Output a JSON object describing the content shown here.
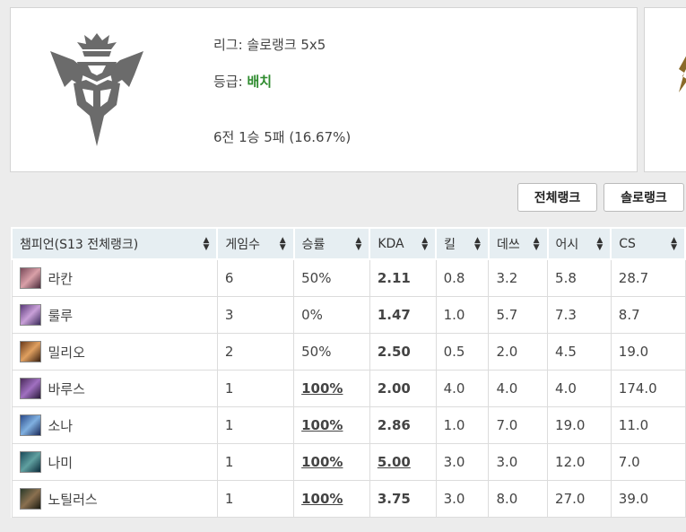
{
  "rank_card": {
    "league_label": "리그: 솔로랭크 5x5",
    "tier_label": "등급: ",
    "tier_value": "배치",
    "record": "6전 1승 5패 (16.67%)"
  },
  "buttons": {
    "total_rank": "전체랭크",
    "solo_rank": "솔로랭크"
  },
  "table": {
    "headers": [
      "챔피언(S13 전체랭크)",
      "게임수",
      "승률",
      "KDA",
      "킬",
      "데쓰",
      "어시",
      "CS"
    ],
    "rows": [
      {
        "champion": "라칸",
        "games": "6",
        "winrate": "50%",
        "kda": "2.11",
        "kills": "0.8",
        "deaths": "3.2",
        "assists": "5.8",
        "cs": "28.7"
      },
      {
        "champion": "룰루",
        "games": "3",
        "winrate": "0%",
        "kda": "1.47",
        "kills": "1.0",
        "deaths": "5.7",
        "assists": "7.3",
        "cs": "8.7"
      },
      {
        "champion": "밀리오",
        "games": "2",
        "winrate": "50%",
        "kda": "2.50",
        "kills": "0.5",
        "deaths": "2.0",
        "assists": "4.5",
        "cs": "19.0"
      },
      {
        "champion": "바루스",
        "games": "1",
        "winrate": "100%",
        "kda": "2.00",
        "kills": "4.0",
        "deaths": "4.0",
        "assists": "4.0",
        "cs": "174.0"
      },
      {
        "champion": "소나",
        "games": "1",
        "winrate": "100%",
        "kda": "2.86",
        "kills": "1.0",
        "deaths": "7.0",
        "assists": "19.0",
        "cs": "11.0"
      },
      {
        "champion": "나미",
        "games": "1",
        "winrate": "100%",
        "kda": "5.00",
        "kills": "3.0",
        "deaths": "3.0",
        "assists": "12.0",
        "cs": "7.0"
      },
      {
        "champion": "노틸러스",
        "games": "1",
        "winrate": "100%",
        "kda": "3.75",
        "kills": "3.0",
        "deaths": "8.0",
        "assists": "27.0",
        "cs": "39.0"
      }
    ]
  },
  "colors": {
    "tier_green": "#2e8b2e",
    "kda_green": "#3d8a3d",
    "kda_red": "#b03030",
    "kda_blue": "#3c4f8a",
    "header_bg": "#e6eef2"
  }
}
